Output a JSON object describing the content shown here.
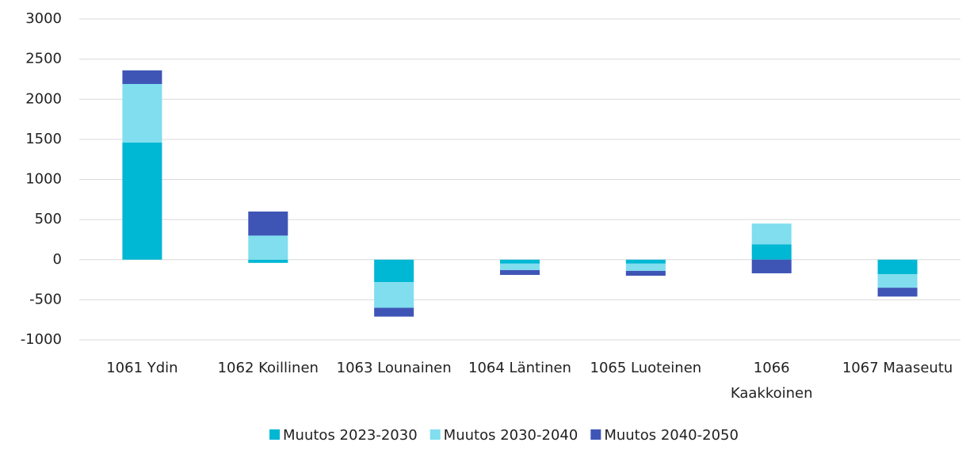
{
  "chart_data": {
    "type": "stacked_bar",
    "categories": [
      "1061 Ydin",
      "1062 Koillinen",
      "1063 Lounainen",
      "1064 Läntinen",
      "1065 Luoteinen",
      "1066 Kaakkoinen",
      "1067 Maaseutu"
    ],
    "series": [
      {
        "name": "Muutos 2023-2030",
        "color": "#00b7d4",
        "values": [
          1460,
          -40,
          -280,
          -50,
          -50,
          190,
          -180
        ]
      },
      {
        "name": "Muutos 2030-2040",
        "color": "#80deee",
        "values": [
          730,
          300,
          -320,
          -80,
          -90,
          260,
          -170
        ]
      },
      {
        "name": "Muutos 2040-2050",
        "color": "#3f55b6",
        "values": [
          170,
          300,
          -110,
          -60,
          -60,
          -170,
          -110
        ]
      }
    ],
    "ylim": [
      -1000,
      3000
    ],
    "yticks": [
      -1000,
      -500,
      0,
      500,
      1000,
      1500,
      2000,
      2500,
      3000
    ],
    "grid": true,
    "legend": "bottom"
  }
}
